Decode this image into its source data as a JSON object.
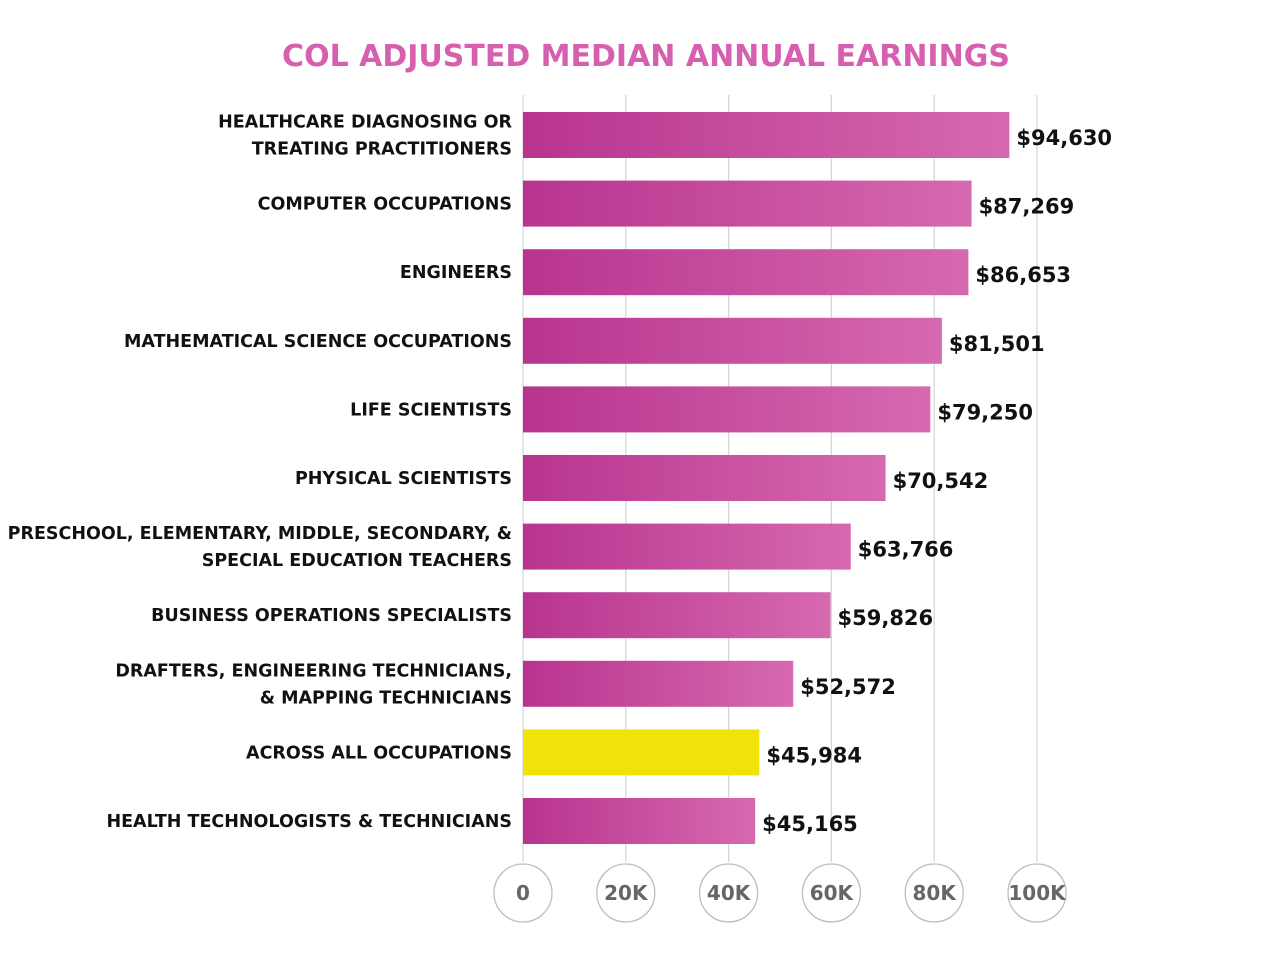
{
  "chart_data": {
    "type": "bar",
    "orientation": "horizontal",
    "title": "COL ADJUSTED MEDIAN ANNUAL EARNINGS",
    "categories": [
      [
        "HEALTHCARE DIAGNOSING OR",
        "TREATING PRACTITIONERS"
      ],
      [
        "COMPUTER OCCUPATIONS"
      ],
      [
        "ENGINEERS"
      ],
      [
        "MATHEMATICAL SCIENCE OCCUPATIONS"
      ],
      [
        "LIFE SCIENTISTS"
      ],
      [
        "PHYSICAL SCIENTISTS"
      ],
      [
        "PRESCHOOL, ELEMENTARY, MIDDLE, SECONDARY, &",
        "SPECIAL EDUCATION TEACHERS"
      ],
      [
        "BUSINESS OPERATIONS SPECIALISTS"
      ],
      [
        "DRAFTERS, ENGINEERING TECHNICIANS,",
        "& MAPPING TECHNICIANS"
      ],
      [
        "ACROSS ALL OCCUPATIONS"
      ],
      [
        "HEALTH TECHNOLOGISTS & TECHNICIANS"
      ]
    ],
    "values": [
      94630,
      87269,
      86653,
      81501,
      79250,
      70542,
      63766,
      59826,
      52572,
      45984,
      45165
    ],
    "value_labels": [
      "$94,630",
      "$87,269",
      "$86,653",
      "$81,501",
      "$79,250",
      "$70,542",
      "$63,766",
      "$59,826",
      "$52,572",
      "$45,984",
      "$45,165"
    ],
    "highlight_index": 9,
    "xlim": [
      0,
      100000
    ],
    "xticks": [
      0,
      20000,
      40000,
      60000,
      80000,
      100000
    ],
    "xtick_labels": [
      "0",
      "20K",
      "40K",
      "60K",
      "80K",
      "100K"
    ],
    "grid": true,
    "colors": {
      "title": "#d65fb0",
      "bar_start": "#b8348f",
      "bar_end": "#d669b0",
      "highlight": "#f0e30a",
      "grid": "#d4d4d4",
      "tick_text": "#666666",
      "label_text": "#111111"
    }
  }
}
